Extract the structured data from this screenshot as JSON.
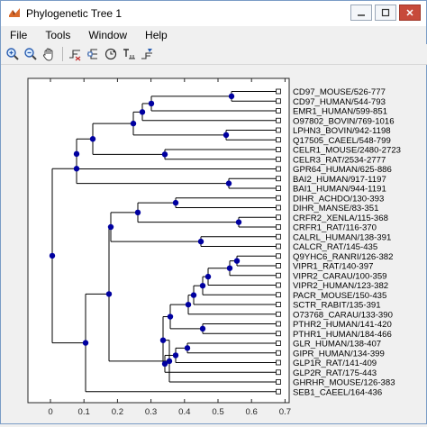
{
  "window": {
    "title": "Phylogenetic Tree 1",
    "colors": {
      "node": "#0000a0",
      "branch": "#000000",
      "leaf_box": "#ffffff"
    }
  },
  "menu": [
    "File",
    "Tools",
    "Window",
    "Help"
  ],
  "toolbar": {
    "icons": [
      "zoom-in-icon",
      "zoom-out-icon",
      "pan-hand-icon",
      "prune-icon",
      "collapse-branch-icon",
      "rotate-branch-icon",
      "rename-icon",
      "find-leaf-icon"
    ]
  },
  "tree": {
    "x_ticks": [
      "0",
      "0.1",
      "0.2",
      "0.3",
      "0.4",
      "0.5",
      "0.6",
      "0.7"
    ],
    "xlim": [
      -0.08,
      0.72
    ],
    "leaves": [
      "CD97_MOUSE/526-777",
      "CD97_HUMAN/544-793",
      "EMR1_HUMAN/599-851",
      "O97802_BOVIN/769-1016",
      "LPHN3_BOVIN/942-1198",
      "Q17505_CAEEL/548-799",
      "CELR1_MOUSE/2480-2723",
      "CELR3_RAT/2534-2777",
      "GPR64_HUMAN/625-886",
      "BAI2_HUMAN/917-1197",
      "BAI1_HUMAN/944-1191",
      "DIHR_ACHDO/130-393",
      "DIHR_MANSE/83-351",
      "CRFR2_XENLA/115-368",
      "CRFR1_RAT/116-370",
      "CALRL_HUMAN/138-391",
      "CALCR_RAT/145-435",
      "Q9YHC6_RANRI/126-382",
      "VIPR1_RAT/140-397",
      "VIPR2_CARAU/100-359",
      "VIPR2_HUMAN/123-382",
      "PACR_MOUSE/150-435",
      "SCTR_RABIT/135-391",
      "O73768_CARAU/133-390",
      "PTHR2_HUMAN/141-420",
      "PTHR1_HUMAN/184-466",
      "GLR_HUMAN/138-407",
      "GIPR_HUMAN/134-399",
      "GLP1R_RAT/141-409",
      "GLP2R_RAT/175-443",
      "GHRHR_MOUSE/126-383",
      "SEB1_CAEEL/164-436"
    ]
  }
}
